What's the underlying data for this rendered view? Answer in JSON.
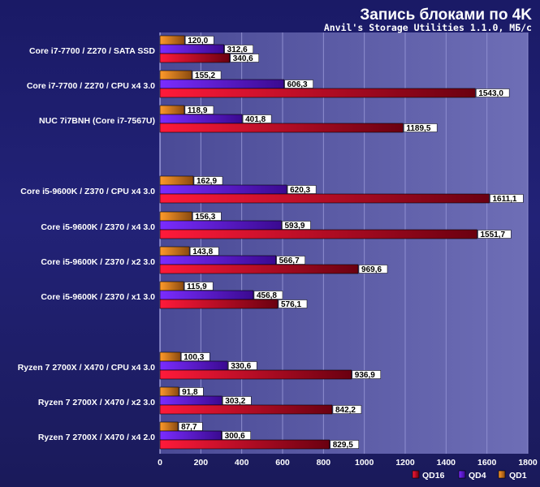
{
  "chart_data": {
    "type": "bar",
    "orientation": "horizontal",
    "title": "Запись блоками по 4K",
    "subtitle": "Anvil's Storage Utilities 1.1.0, МБ/с",
    "categories": [
      "Core i7-7700 / Z270 / SATA SSD",
      "Core i7-7700 / Z270 / CPU x4 3.0",
      "NUC 7i7BNH (Core i7-7567U)",
      "Core i5-9600K / Z370 / CPU x4 3.0",
      "Core i5-9600K / Z370 / x4 3.0",
      "Core i5-9600K / Z370 / x2 3.0",
      "Core i5-9600K / Z370 / x1 3.0",
      "Ryzen 7 2700X / X470 / CPU x4 3.0",
      "Ryzen 7 2700X / X470 / x2 3.0",
      "Ryzen 7 2700X / X470 / x4 2.0"
    ],
    "value_labels": {
      "QD1": [
        "120,0",
        "155,2",
        "118,9",
        "162,9",
        "156,3",
        "143,8",
        "115,9",
        "100,3",
        "91,8",
        "87,7"
      ],
      "QD4": [
        "312,6",
        "606,3",
        "401,8",
        "620,3",
        "593,9",
        "566,7",
        "456,8",
        "330,6",
        "303,2",
        "300,6"
      ],
      "QD16": [
        "340,6",
        "1543,0",
        "1189,5",
        "1611,1",
        "1551,7",
        "969,6",
        "576,1",
        "936,9",
        "842,2",
        "829,5"
      ]
    },
    "series": [
      {
        "name": "QD1",
        "color": "#e08a1e",
        "values": [
          120.0,
          155.2,
          118.9,
          162.9,
          156.3,
          143.8,
          115.9,
          100.3,
          91.8,
          87.7
        ]
      },
      {
        "name": "QD4",
        "color": "#6a20d8",
        "values": [
          312.6,
          606.3,
          401.8,
          620.3,
          593.9,
          566.7,
          456.8,
          330.6,
          303.2,
          300.6
        ]
      },
      {
        "name": "QD16",
        "color": "#d8102a",
        "values": [
          340.6,
          1543.0,
          1189.5,
          1611.1,
          1551.7,
          969.6,
          576.1,
          936.9,
          842.2,
          829.5
        ]
      }
    ],
    "xlim": [
      0,
      1800
    ],
    "xticks": [
      "0",
      "200",
      "400",
      "600",
      "800",
      "1000",
      "1200",
      "1400",
      "1600",
      "1800"
    ],
    "legend": [
      "QD16",
      "QD4",
      "QD1"
    ],
    "legend_position": "bottom-right",
    "grid": true
  }
}
